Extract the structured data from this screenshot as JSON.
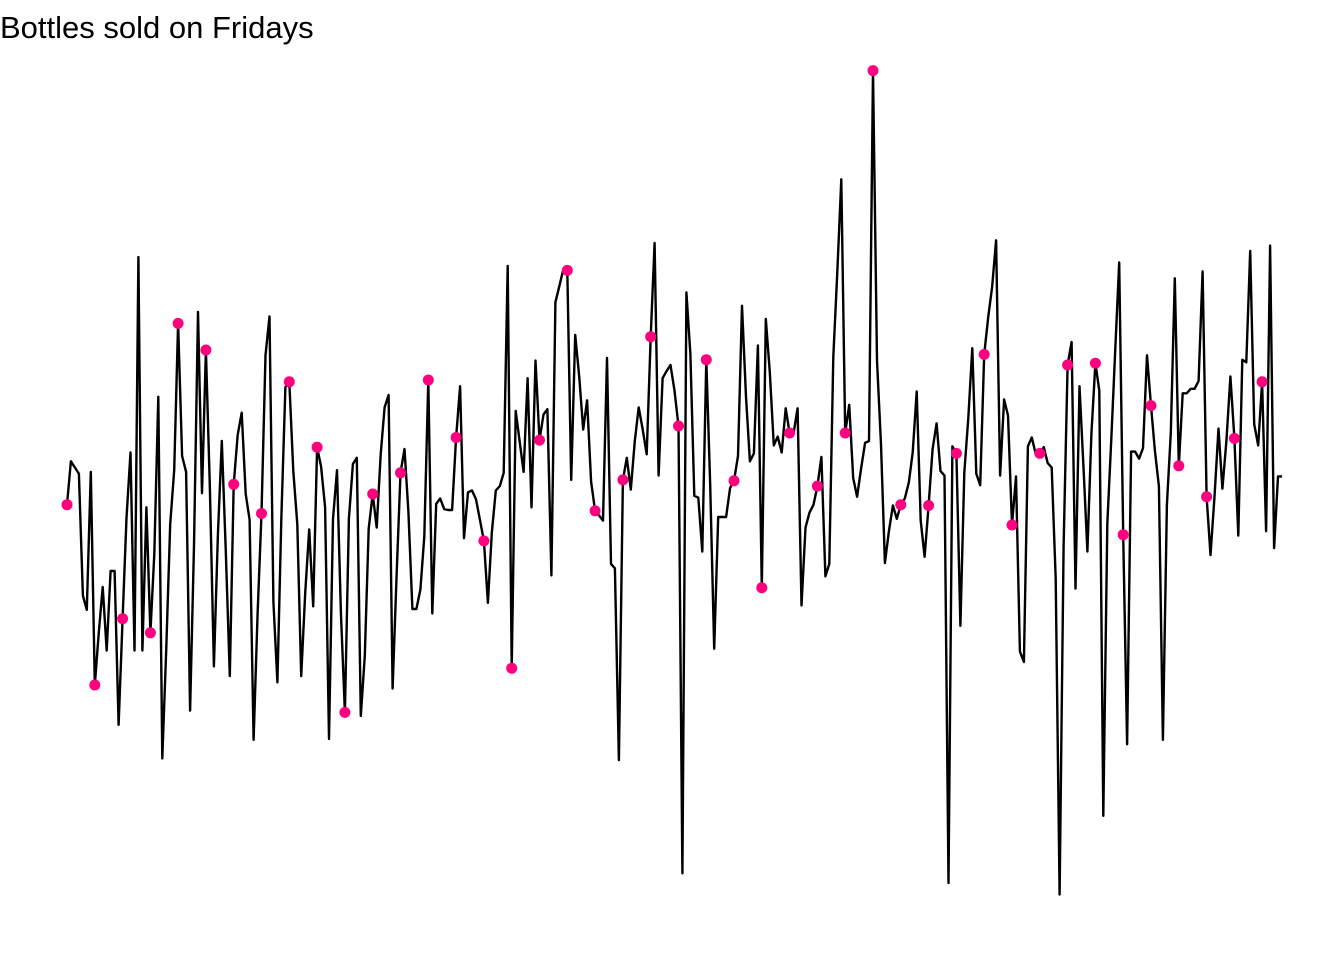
{
  "chart_data": {
    "type": "line",
    "title": "Bottles sold on Fridays",
    "xlabel": "",
    "ylabel": "",
    "grid": false,
    "axes_visible": false,
    "line_color": "#000000",
    "highlight_color": "#FF007F",
    "highlight_every": 7,
    "highlight_offset": 1,
    "ylim": [
      0,
      100
    ],
    "series": [
      {
        "values": [
          49.7,
          49.7,
          54.6,
          53.9,
          53.2,
          39.4,
          37.8,
          53.4,
          29.3,
          35.1,
          40.4,
          33.2,
          42.2,
          42.2,
          24.8,
          36.8,
          48.2,
          55.6,
          33.2,
          77.7,
          33.2,
          49.4,
          35.2,
          44.1,
          61.9,
          21.0,
          33.2,
          47.5,
          53.6,
          70.2,
          55.2,
          53.4,
          26.4,
          45.1,
          71.5,
          51.0,
          67.2,
          51.5,
          31.4,
          46.3,
          56.9,
          44.4,
          30.3,
          52.0,
          57.6,
          60.1,
          50.9,
          48.0,
          23.1,
          37.4,
          48.7,
          66.6,
          71.0,
          38.7,
          29.6,
          48.4,
          63.0,
          63.6,
          53.5,
          47.5,
          30.3,
          39.7,
          46.9,
          38.2,
          56.2,
          54.0,
          49.4,
          23.2,
          48.1,
          53.6,
          37.5,
          26.2,
          48.1,
          54.3,
          55.0,
          25.8,
          32.6,
          47.0,
          50.9,
          47.1,
          55.4,
          60.7,
          62.1,
          28.9,
          41.4,
          53.3,
          56.0,
          48.9,
          37.9,
          37.9,
          40.1,
          46.1,
          63.8,
          37.4,
          49.8,
          50.4,
          49.2,
          49.1,
          49.1,
          57.3,
          63.1,
          45.9,
          51.1,
          51.3,
          50.3,
          48.0,
          45.6,
          38.6,
          46.5,
          51.3,
          51.8,
          53.3,
          76.7,
          31.2,
          60.3,
          56.9,
          53.4,
          64.0,
          49.4,
          66.0,
          57.0,
          59.9,
          60.5,
          41.7,
          72.6,
          74.4,
          76.3,
          76.2,
          52.5,
          68.9,
          64.2,
          58.2,
          61.5,
          52.3,
          49.0,
          48.5,
          47.9,
          66.3,
          43.0,
          42.5,
          20.8,
          52.5,
          55.0,
          51.4,
          56.9,
          60.7,
          58.2,
          55.4,
          68.7,
          79.3,
          53.0,
          64.0,
          64.8,
          65.5,
          62.6,
          58.6,
          8.0,
          73.7,
          66.7,
          50.7,
          50.5,
          44.4,
          66.1,
          51.9,
          33.4,
          48.3,
          48.3,
          48.3,
          51.6,
          52.4,
          55.2,
          72.2,
          61.9,
          54.6,
          55.5,
          67.7,
          40.3,
          70.7,
          64.7,
          56.4,
          57.4,
          55.6,
          60.6,
          57.8,
          57.8,
          60.6,
          38.3,
          47.1,
          48.8,
          49.7,
          51.8,
          55.1,
          41.6,
          43.0,
          66.4,
          76.0,
          86.5,
          57.8,
          61.0,
          52.7,
          50.6,
          53.8,
          56.7,
          56.9,
          98.8,
          66.0,
          56.5,
          43.1,
          46.7,
          49.6,
          48.1,
          49.7,
          50.4,
          52.2,
          55.6,
          62.5,
          47.9,
          43.8,
          49.6,
          56.0,
          58.9,
          53.5,
          53.0,
          6.9,
          56.3,
          55.5,
          36.0,
          53.3,
          59.5,
          67.4,
          53.2,
          51.9,
          66.7,
          70.9,
          74.3,
          79.6,
          53.0,
          61.6,
          59.8,
          47.4,
          52.9,
          33.1,
          31.9,
          56.3,
          57.3,
          55.4,
          55.5,
          56.2,
          54.4,
          53.9,
          41.3,
          5.6,
          45.0,
          65.5,
          68.1,
          40.2,
          63.1,
          53.9,
          44.4,
          57.7,
          65.7,
          62.6,
          14.5,
          47.5,
          57.1,
          67.1,
          77.1,
          46.3,
          22.6,
          55.7,
          55.7,
          54.9,
          56.1,
          66.6,
          60.9,
          55.8,
          51.8,
          23.1,
          49.7,
          57.8,
          75.3,
          54.1,
          62.3,
          62.3,
          62.8,
          62.8,
          63.7,
          76.1,
          50.6,
          44.0,
          50.6,
          58.3,
          51.5,
          56.9,
          64.2,
          57.2,
          46.2,
          66.1,
          65.8,
          78.4,
          58.8,
          56.4,
          63.6,
          46.7,
          79.0,
          44.8,
          52.9,
          52.9
        ],
        "highlighted_indices": [
          1,
          8,
          15,
          22,
          29,
          36,
          43,
          50,
          57,
          64,
          71,
          78,
          85,
          92,
          99,
          106,
          113,
          120,
          127,
          134,
          141,
          148,
          155,
          162,
          169,
          176,
          183,
          190,
          197,
          204,
          211,
          218,
          225,
          232,
          239,
          246,
          253,
          260,
          267,
          274,
          281,
          288,
          295,
          302
        ]
      }
    ]
  }
}
